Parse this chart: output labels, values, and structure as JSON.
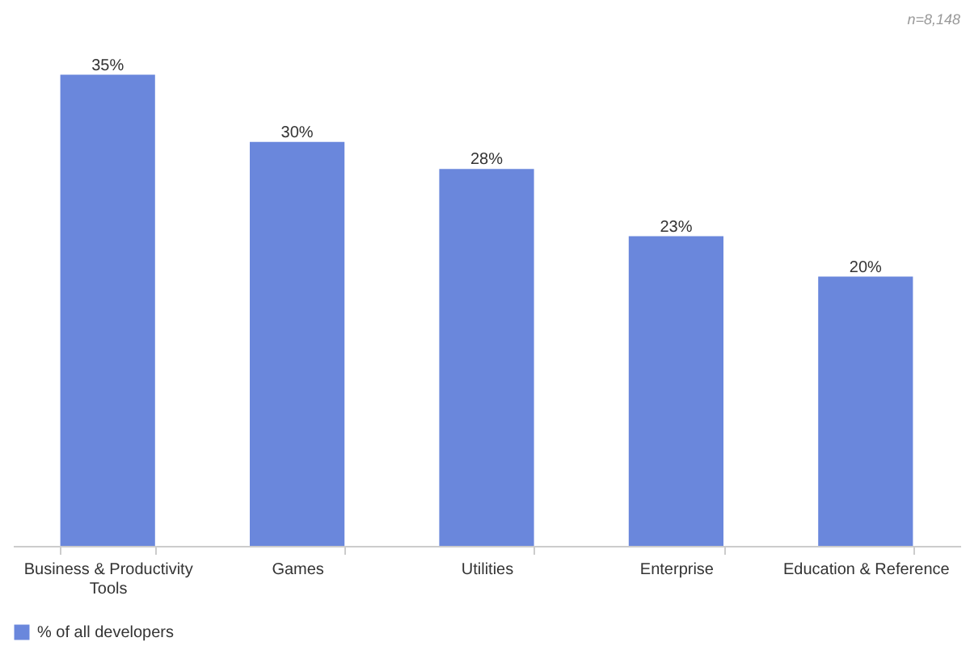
{
  "chart_data": {
    "type": "bar",
    "categories": [
      "Business & Productivity Tools",
      "Games",
      "Utilities",
      "Enterprise",
      "Education & Reference"
    ],
    "series": [
      {
        "name": "% of all developers",
        "color": "#6a87dc",
        "values": [
          35,
          30,
          28,
          23,
          20
        ],
        "value_labels": [
          "35%",
          "30%",
          "28%",
          "23%",
          "20%"
        ]
      }
    ],
    "grid": false,
    "legend": "bottom left",
    "annotations": [
      "n=8,148"
    ]
  }
}
